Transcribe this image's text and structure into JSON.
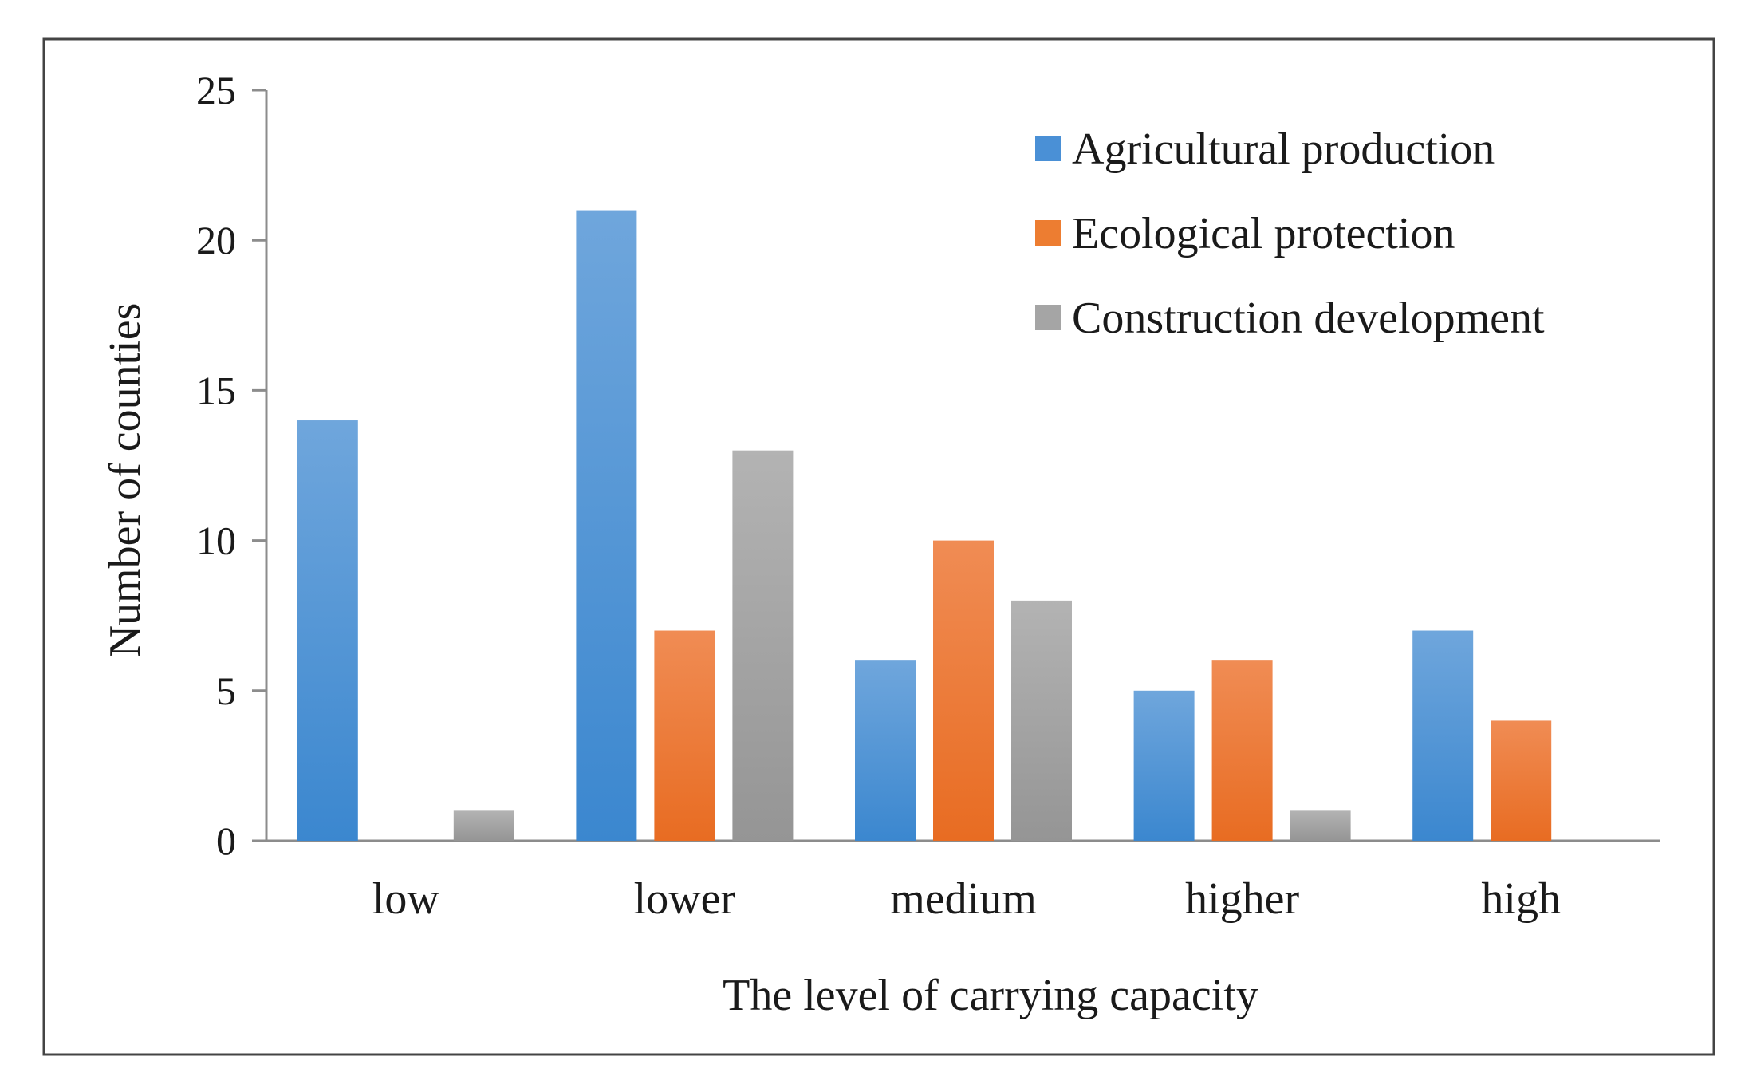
{
  "chart_data": {
    "type": "bar",
    "title": "",
    "xlabel": "The level of carrying capacity",
    "ylabel": "Number of counties",
    "ylim": [
      0,
      25
    ],
    "yticks": [
      0,
      5,
      10,
      15,
      20,
      25
    ],
    "categories": [
      "low",
      "lower",
      "medium",
      "higher",
      "high"
    ],
    "series": [
      {
        "name": "Agricultural production",
        "color": "#4a90d6",
        "values": [
          14,
          21,
          6,
          5,
          7
        ]
      },
      {
        "name": "Ecological protection",
        "color": "#ed7d31",
        "values": [
          0,
          7,
          10,
          6,
          4
        ]
      },
      {
        "name": "Construction development",
        "color": "#a5a5a5",
        "values": [
          1,
          13,
          8,
          1,
          0
        ]
      }
    ],
    "grid": false,
    "legend_position": "top-right"
  }
}
